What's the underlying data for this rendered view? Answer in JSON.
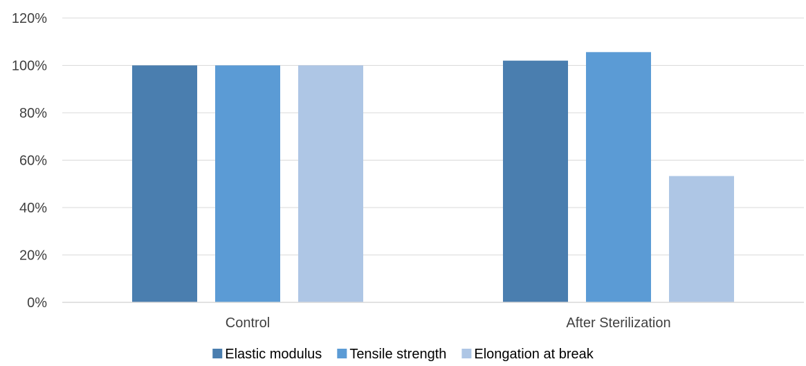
{
  "chart_data": {
    "type": "bar",
    "title": "",
    "xlabel": "",
    "ylabel": "",
    "categories": [
      "Control",
      "After Sterilization"
    ],
    "series": [
      {
        "name": "Elastic modulus",
        "values": [
          100,
          102
        ],
        "color": "#4a7eaf"
      },
      {
        "name": "Tensile strength",
        "values": [
          100,
          105.6
        ],
        "color": "#5b9bd5"
      },
      {
        "name": "Elongation at break",
        "values": [
          100,
          53.3
        ],
        "color": "#aec6e5"
      }
    ],
    "ylim": [
      0,
      120
    ],
    "yticks": [
      0,
      20,
      40,
      60,
      80,
      100,
      120
    ],
    "ytick_labels": [
      "0%",
      "20%",
      "40%",
      "60%",
      "80%",
      "100%",
      "120%"
    ],
    "grid": true,
    "legend_position": "bottom"
  }
}
